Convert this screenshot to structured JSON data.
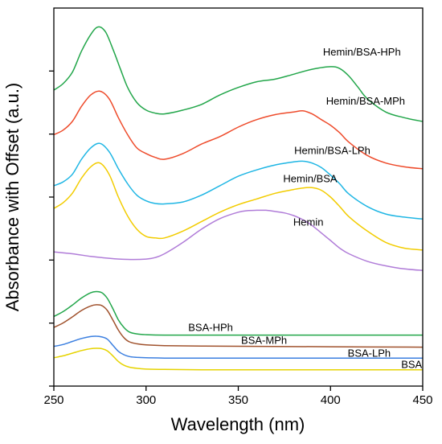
{
  "chart_data": {
    "type": "line",
    "xlabel": "Wavelength (nm)",
    "ylabel": "Absorbance with Offset (a.u.)",
    "xlim": [
      250,
      450
    ],
    "x_ticks": [
      250,
      300,
      350,
      400,
      450
    ],
    "ylim": [
      0,
      1
    ],
    "y_tick_labels_shown": false,
    "grid": false,
    "legend": "inline labels beside curves",
    "series": [
      {
        "name": "Hemin/BSA-HPh",
        "color": "#22a64a",
        "x": [
          250,
          255,
          260,
          265,
          270,
          274,
          278,
          282,
          286,
          290,
          295,
          300,
          305,
          310,
          320,
          330,
          340,
          350,
          360,
          370,
          380,
          390,
          400,
          405,
          410,
          415,
          420,
          430,
          440,
          450
        ],
        "y": [
          0.783,
          0.8,
          0.83,
          0.886,
          0.93,
          0.95,
          0.937,
          0.892,
          0.84,
          0.79,
          0.75,
          0.73,
          0.722,
          0.72,
          0.73,
          0.745,
          0.77,
          0.79,
          0.805,
          0.812,
          0.825,
          0.838,
          0.845,
          0.84,
          0.82,
          0.79,
          0.76,
          0.725,
          0.71,
          0.7
        ]
      },
      {
        "name": "Hemin/BSA-MPh",
        "color": "#ee4b2b",
        "x": [
          250,
          255,
          260,
          265,
          270,
          275,
          280,
          285,
          290,
          295,
          300,
          305,
          310,
          320,
          330,
          340,
          350,
          360,
          370,
          380,
          385,
          390,
          395,
          400,
          405,
          410,
          420,
          430,
          440,
          450
        ],
        "y": [
          0.665,
          0.677,
          0.7,
          0.74,
          0.77,
          0.78,
          0.76,
          0.71,
          0.665,
          0.63,
          0.615,
          0.605,
          0.6,
          0.615,
          0.64,
          0.66,
          0.685,
          0.705,
          0.718,
          0.725,
          0.728,
          0.72,
          0.705,
          0.69,
          0.67,
          0.645,
          0.61,
          0.59,
          0.58,
          0.575
        ]
      },
      {
        "name": "Hemin/BSA-LPh",
        "color": "#1fb6e4",
        "x": [
          250,
          255,
          260,
          265,
          270,
          275,
          280,
          285,
          290,
          295,
          300,
          305,
          310,
          320,
          330,
          340,
          350,
          360,
          370,
          380,
          385,
          390,
          395,
          400,
          405,
          410,
          420,
          430,
          440,
          450
        ],
        "y": [
          0.53,
          0.54,
          0.56,
          0.6,
          0.63,
          0.642,
          0.62,
          0.575,
          0.535,
          0.505,
          0.49,
          0.483,
          0.482,
          0.487,
          0.505,
          0.53,
          0.555,
          0.572,
          0.585,
          0.593,
          0.595,
          0.59,
          0.578,
          0.558,
          0.535,
          0.508,
          0.475,
          0.455,
          0.447,
          0.442
        ]
      },
      {
        "name": "Hemin/BSA",
        "color": "#f2cc00",
        "x": [
          250,
          255,
          260,
          265,
          270,
          275,
          280,
          285,
          290,
          295,
          300,
          305,
          310,
          320,
          330,
          340,
          350,
          360,
          370,
          380,
          385,
          390,
          395,
          400,
          405,
          410,
          420,
          430,
          440,
          450
        ],
        "y": [
          0.47,
          0.485,
          0.51,
          0.55,
          0.58,
          0.59,
          0.56,
          0.5,
          0.45,
          0.415,
          0.396,
          0.392,
          0.392,
          0.41,
          0.435,
          0.46,
          0.48,
          0.495,
          0.51,
          0.52,
          0.524,
          0.525,
          0.518,
          0.5,
          0.475,
          0.448,
          0.41,
          0.38,
          0.365,
          0.36
        ]
      },
      {
        "name": "Hemin",
        "color": "#b07cd8",
        "x": [
          250,
          260,
          270,
          280,
          290,
          300,
          305,
          310,
          320,
          330,
          340,
          350,
          355,
          360,
          365,
          370,
          375,
          380,
          385,
          390,
          395,
          400,
          405,
          410,
          420,
          430,
          440,
          450
        ],
        "y": [
          0.355,
          0.35,
          0.343,
          0.338,
          0.335,
          0.336,
          0.34,
          0.35,
          0.38,
          0.415,
          0.443,
          0.46,
          0.464,
          0.465,
          0.465,
          0.462,
          0.458,
          0.451,
          0.44,
          0.425,
          0.405,
          0.385,
          0.365,
          0.35,
          0.33,
          0.318,
          0.31,
          0.306
        ]
      },
      {
        "name": "BSA-HPh",
        "color": "#22a64a",
        "x": [
          250,
          255,
          260,
          265,
          270,
          273,
          276,
          279,
          282,
          285,
          288,
          291,
          295,
          300,
          310,
          330,
          360,
          400,
          450
        ],
        "y": [
          0.184,
          0.197,
          0.214,
          0.233,
          0.247,
          0.25,
          0.247,
          0.232,
          0.205,
          0.175,
          0.155,
          0.143,
          0.138,
          0.136,
          0.135,
          0.135,
          0.135,
          0.135,
          0.135
        ]
      },
      {
        "name": "BSA-MPh",
        "color": "#a0522d",
        "x": [
          250,
          255,
          260,
          265,
          270,
          273,
          276,
          279,
          282,
          285,
          288,
          291,
          295,
          300,
          310,
          330,
          360,
          400,
          450
        ],
        "y": [
          0.155,
          0.167,
          0.183,
          0.2,
          0.212,
          0.215,
          0.213,
          0.2,
          0.175,
          0.148,
          0.128,
          0.117,
          0.112,
          0.109,
          0.107,
          0.106,
          0.105,
          0.104,
          0.103
        ]
      },
      {
        "name": "BSA-LPh",
        "color": "#3b7fe0",
        "x": [
          250,
          255,
          260,
          265,
          270,
          273,
          276,
          279,
          282,
          285,
          288,
          291,
          295,
          300,
          310,
          330,
          360,
          400,
          450
        ],
        "y": [
          0.105,
          0.11,
          0.118,
          0.126,
          0.131,
          0.132,
          0.13,
          0.124,
          0.108,
          0.092,
          0.083,
          0.078,
          0.076,
          0.075,
          0.074,
          0.074,
          0.074,
          0.074,
          0.074
        ]
      },
      {
        "name": "BSA",
        "color": "#e6d300",
        "x": [
          250,
          255,
          260,
          265,
          270,
          273,
          276,
          279,
          282,
          285,
          288,
          291,
          295,
          300,
          310,
          330,
          360,
          400,
          450
        ],
        "y": [
          0.075,
          0.08,
          0.087,
          0.094,
          0.099,
          0.1,
          0.099,
          0.093,
          0.08,
          0.065,
          0.055,
          0.05,
          0.047,
          0.045,
          0.044,
          0.043,
          0.043,
          0.043,
          0.043
        ]
      }
    ],
    "label_positions": [
      {
        "name": "Hemin/BSA-HPh",
        "x": 417,
        "y": 0.875
      },
      {
        "name": "Hemin/BSA-MPh",
        "x": 419,
        "y": 0.745
      },
      {
        "name": "Hemin/BSA-LPh",
        "x": 401,
        "y": 0.614
      },
      {
        "name": "Hemin/BSA",
        "x": 389,
        "y": 0.539
      },
      {
        "name": "Hemin",
        "x": 388,
        "y": 0.424
      },
      {
        "name": "BSA-HPh",
        "x": 335,
        "y": 0.146
      },
      {
        "name": "BSA-MPh",
        "x": 364,
        "y": 0.112
      },
      {
        "name": "BSA-LPh",
        "x": 421,
        "y": 0.078
      },
      {
        "name": "BSA",
        "x": 444,
        "y": 0.048
      }
    ]
  }
}
